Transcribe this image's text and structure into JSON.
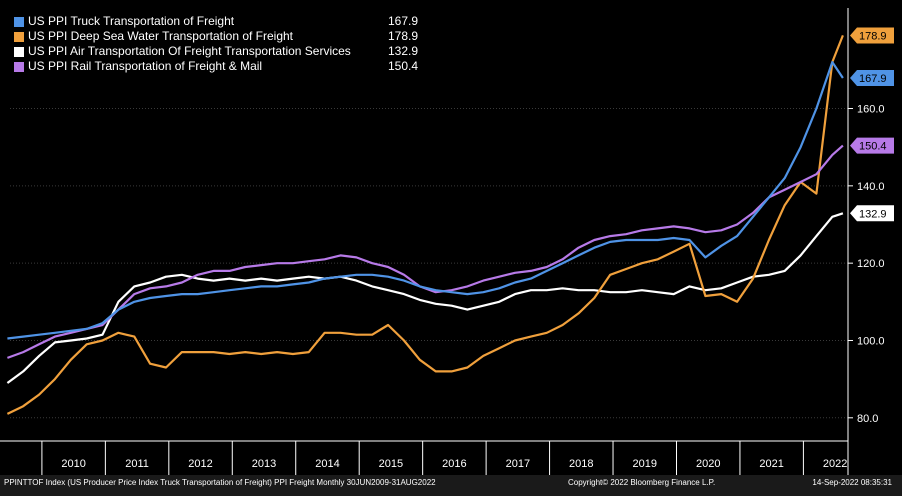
{
  "chart_data": {
    "type": "line",
    "title": "",
    "xlabel": "",
    "ylabel": "",
    "ylim": [
      74,
      186
    ],
    "xlim": [
      "2009-06-30",
      "2022-09-14"
    ],
    "grid": true,
    "legend_position": "top-left",
    "x_ticks": [
      "2010",
      "2011",
      "2012",
      "2013",
      "2014",
      "2015",
      "2016",
      "2017",
      "2018",
      "2019",
      "2020",
      "2021",
      "2022"
    ],
    "y_ticks": [
      "80.0",
      "100.0",
      "120.0",
      "140.0",
      "160.0"
    ],
    "x": [
      "2009-06",
      "2009-09",
      "2009-12",
      "2010-03",
      "2010-06",
      "2010-09",
      "2010-12",
      "2011-03",
      "2011-06",
      "2011-09",
      "2011-12",
      "2012-03",
      "2012-06",
      "2012-09",
      "2012-12",
      "2013-03",
      "2013-06",
      "2013-09",
      "2013-12",
      "2014-03",
      "2014-06",
      "2014-09",
      "2014-12",
      "2015-03",
      "2015-06",
      "2015-09",
      "2015-12",
      "2016-03",
      "2016-06",
      "2016-09",
      "2016-12",
      "2017-03",
      "2017-06",
      "2017-09",
      "2017-12",
      "2018-03",
      "2018-06",
      "2018-09",
      "2018-12",
      "2019-03",
      "2019-06",
      "2019-09",
      "2019-12",
      "2020-03",
      "2020-06",
      "2020-09",
      "2020-12",
      "2021-03",
      "2021-06",
      "2021-09",
      "2021-12",
      "2022-03",
      "2022-06",
      "2022-08"
    ],
    "series": [
      {
        "name": "US PPI Truck Transportation of Freight",
        "last_value": "167.9",
        "color": "#4f93e6",
        "values": [
          100.5,
          101.0,
          101.5,
          102.0,
          102.5,
          103.0,
          104.5,
          108.0,
          110.0,
          111.0,
          111.5,
          112.0,
          112.0,
          112.5,
          113.0,
          113.5,
          114.0,
          114.0,
          114.5,
          115.0,
          116.0,
          116.5,
          117.0,
          117.0,
          116.5,
          115.5,
          114.0,
          113.0,
          112.5,
          112.0,
          112.5,
          113.5,
          115.0,
          116.0,
          118.0,
          120.0,
          122.0,
          124.0,
          125.5,
          126.0,
          126.0,
          126.0,
          126.5,
          126.0,
          121.5,
          124.5,
          127.0,
          132.0,
          137.0,
          142.0,
          150.0,
          160.0,
          172.0,
          167.9
        ]
      },
      {
        "name": "US PPI Deep Sea Water Transportation of Freight",
        "last_value": "178.9",
        "color": "#f0a03c",
        "values": [
          81.0,
          83.0,
          86.0,
          90.0,
          95.0,
          99.0,
          100.0,
          102.0,
          101.0,
          94.0,
          93.0,
          97.0,
          97.0,
          97.0,
          96.5,
          97.0,
          96.5,
          97.0,
          96.5,
          97.0,
          102.0,
          102.0,
          101.5,
          101.5,
          104.0,
          100.0,
          95.0,
          92.0,
          92.0,
          93.0,
          96.0,
          98.0,
          100.0,
          101.0,
          102.0,
          104.0,
          107.0,
          111.0,
          117.0,
          118.5,
          120.0,
          121.0,
          123.0,
          125.0,
          111.5,
          112.0,
          110.0,
          116.0,
          126.0,
          135.0,
          141.0,
          138.0,
          172.0,
          178.9
        ]
      },
      {
        "name": "US PPI Air Transportation Of Freight Transportation Services",
        "last_value": "132.9",
        "color": "#ffffff",
        "values": [
          89.0,
          92.0,
          96.0,
          99.5,
          100.0,
          100.5,
          101.5,
          110.0,
          114.0,
          115.0,
          116.5,
          117.0,
          116.0,
          115.5,
          116.0,
          115.5,
          116.0,
          115.5,
          116.0,
          116.5,
          116.0,
          116.5,
          115.5,
          114.0,
          113.0,
          112.0,
          110.5,
          109.5,
          109.0,
          108.0,
          109.0,
          110.0,
          112.0,
          113.0,
          113.0,
          113.5,
          113.0,
          113.0,
          112.5,
          112.5,
          113.0,
          112.5,
          112.0,
          114.0,
          113.0,
          113.5,
          115.0,
          116.5,
          117.0,
          118.0,
          122.0,
          127.0,
          132.0,
          132.9
        ]
      },
      {
        "name": "US PPI Rail Transportation of Freight & Mail",
        "last_value": "150.4",
        "color": "#b77ae8",
        "values": [
          95.5,
          97.0,
          99.0,
          101.0,
          102.0,
          103.0,
          104.0,
          108.0,
          112.0,
          113.5,
          114.0,
          115.0,
          117.0,
          118.0,
          118.0,
          119.0,
          119.5,
          120.0,
          120.0,
          120.5,
          121.0,
          122.0,
          121.5,
          120.0,
          119.0,
          117.0,
          114.0,
          112.5,
          113.0,
          114.0,
          115.5,
          116.5,
          117.5,
          118.0,
          119.0,
          121.0,
          124.0,
          126.0,
          127.0,
          127.5,
          128.5,
          129.0,
          129.5,
          129.0,
          128.0,
          128.5,
          130.0,
          133.0,
          137.0,
          139.0,
          141.0,
          143.0,
          148.0,
          150.4
        ]
      }
    ]
  },
  "footer": {
    "left": "PPINTTOF Index (US Producer Price Index Truck Transportation of Freight) PPI Freight  Monthly 30JUN2009-31AUG2022",
    "copyright": "Copyright© 2022 Bloomberg Finance L.P.",
    "timestamp": "14-Sep-2022 08:35:31"
  }
}
